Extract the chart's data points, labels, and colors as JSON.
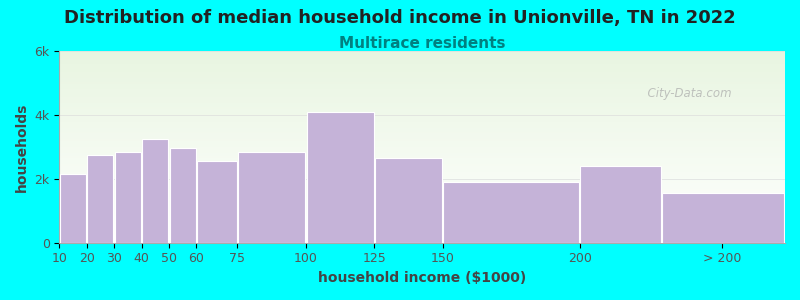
{
  "title": "Distribution of median household income in Unionville, TN in 2022",
  "subtitle": "Multirace residents",
  "xlabel": "household income ($1000)",
  "ylabel": "households",
  "background_color": "#00FFFF",
  "bar_color": "#c5b3d8",
  "bar_edge_color": "#ffffff",
  "categories": [
    "10",
    "20",
    "30",
    "40",
    "50",
    "60",
    "75",
    "100",
    "125",
    "150",
    "200",
    "> 200"
  ],
  "bar_lefts": [
    10,
    20,
    30,
    40,
    50,
    60,
    75,
    100,
    125,
    150,
    200,
    230
  ],
  "bar_widths": [
    10,
    10,
    10,
    10,
    10,
    15,
    25,
    25,
    25,
    50,
    30,
    45
  ],
  "values": [
    2150,
    2750,
    2850,
    3250,
    2950,
    2550,
    2850,
    4100,
    2650,
    1900,
    2400,
    1550
  ],
  "xlim": [
    10,
    275
  ],
  "xtick_positions": [
    10,
    20,
    30,
    40,
    50,
    60,
    75,
    100,
    125,
    150,
    200,
    252
  ],
  "xtick_labels": [
    "10",
    "20",
    "30",
    "40",
    "50",
    "60",
    "75",
    "100",
    "125",
    "150",
    "200",
    "> 200"
  ],
  "ylim": [
    0,
    6000
  ],
  "yticks": [
    0,
    2000,
    4000,
    6000
  ],
  "ytick_labels": [
    "0",
    "2k",
    "4k",
    "6k"
  ],
  "title_fontsize": 13,
  "subtitle_fontsize": 11,
  "subtitle_color": "#008080",
  "axis_label_fontsize": 10,
  "tick_fontsize": 9,
  "watermark": "  City-Data.com"
}
